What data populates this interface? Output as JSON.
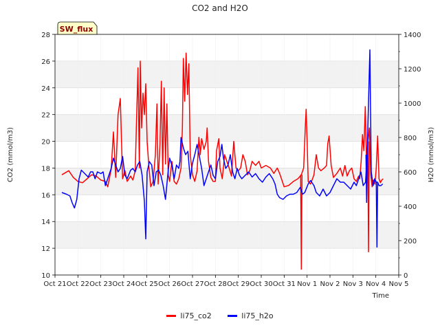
{
  "chart_data": {
    "type": "line",
    "title": "CO2 and H2O",
    "annotation": "SW_flux",
    "xlabel": "Time",
    "ylabel": "CO2 (mmol/m3)",
    "y2label": "H2O (mmol/m3)",
    "xlim": [
      0,
      15
    ],
    "ylim": [
      10,
      28
    ],
    "y2lim": [
      0,
      1400
    ],
    "xticks": [
      0,
      1,
      2,
      3,
      4,
      5,
      6,
      7,
      8,
      9,
      10,
      11,
      12,
      13,
      14,
      15
    ],
    "xtick_labels": [
      "Oct 21",
      "Oct 22",
      "Oct 23",
      "Oct 24",
      "Oct 25",
      "Oct 26",
      "Oct 27",
      "Oct 28",
      "Oct 29",
      "Oct 30",
      "Oct 31",
      "Nov 1",
      "Nov 2",
      "Nov 3",
      "Nov 4",
      "Nov 5"
    ],
    "yticks": [
      10,
      12,
      14,
      16,
      18,
      20,
      22,
      24,
      26,
      28
    ],
    "y2ticks": [
      0,
      200,
      400,
      600,
      800,
      1000,
      1200,
      1400
    ],
    "series": [
      {
        "name": "li75_co2",
        "color": "#ff0000",
        "axis": "left",
        "points": [
          [
            0.3,
            17.5
          ],
          [
            0.6,
            17.8
          ],
          [
            0.8,
            17.3
          ],
          [
            1.0,
            17.0
          ],
          [
            1.2,
            16.9
          ],
          [
            1.4,
            17.2
          ],
          [
            1.6,
            17.5
          ],
          [
            1.8,
            17.4
          ],
          [
            2.0,
            17.1
          ],
          [
            2.2,
            17.0
          ],
          [
            2.3,
            16.6
          ],
          [
            2.45,
            17.9
          ],
          [
            2.55,
            20.7
          ],
          [
            2.65,
            17.3
          ],
          [
            2.75,
            22.0
          ],
          [
            2.85,
            23.2
          ],
          [
            2.95,
            17.2
          ],
          [
            3.05,
            17.8
          ],
          [
            3.15,
            17.0
          ],
          [
            3.3,
            17.4
          ],
          [
            3.4,
            17.1
          ],
          [
            3.5,
            17.8
          ],
          [
            3.55,
            21.0
          ],
          [
            3.62,
            25.5
          ],
          [
            3.68,
            18.0
          ],
          [
            3.72,
            26.0
          ],
          [
            3.78,
            21.0
          ],
          [
            3.84,
            23.6
          ],
          [
            3.9,
            22.0
          ],
          [
            3.96,
            24.3
          ],
          [
            4.02,
            20.0
          ],
          [
            4.1,
            18.0
          ],
          [
            4.18,
            16.6
          ],
          [
            4.28,
            17.0
          ],
          [
            4.38,
            19.0
          ],
          [
            4.45,
            22.8
          ],
          [
            4.5,
            16.8
          ],
          [
            4.58,
            19.8
          ],
          [
            4.64,
            24.5
          ],
          [
            4.7,
            17.5
          ],
          [
            4.76,
            24.0
          ],
          [
            4.82,
            18.3
          ],
          [
            4.88,
            22.8
          ],
          [
            4.94,
            17.5
          ],
          [
            5.0,
            17.0
          ],
          [
            5.1,
            18.5
          ],
          [
            5.2,
            17.0
          ],
          [
            5.3,
            16.8
          ],
          [
            5.4,
            17.2
          ],
          [
            5.5,
            18.0
          ],
          [
            5.56,
            21.0
          ],
          [
            5.6,
            26.2
          ],
          [
            5.66,
            23.0
          ],
          [
            5.72,
            26.6
          ],
          [
            5.78,
            23.5
          ],
          [
            5.84,
            25.8
          ],
          [
            5.9,
            19.0
          ],
          [
            6.0,
            17.5
          ],
          [
            6.1,
            17.0
          ],
          [
            6.2,
            17.8
          ],
          [
            6.28,
            20.3
          ],
          [
            6.34,
            19.0
          ],
          [
            6.4,
            20.2
          ],
          [
            6.5,
            19.4
          ],
          [
            6.6,
            20.0
          ],
          [
            6.64,
            21.0
          ],
          [
            6.7,
            18.5
          ],
          [
            6.8,
            17.3
          ],
          [
            6.9,
            17.0
          ],
          [
            7.0,
            17.0
          ],
          [
            7.05,
            19.3
          ],
          [
            7.15,
            20.2
          ],
          [
            7.2,
            18.0
          ],
          [
            7.3,
            17.2
          ],
          [
            7.4,
            19.0
          ],
          [
            7.5,
            18.5
          ],
          [
            7.6,
            18.0
          ],
          [
            7.7,
            17.4
          ],
          [
            7.8,
            20.0
          ],
          [
            7.9,
            18.0
          ],
          [
            8.0,
            17.8
          ],
          [
            8.1,
            18.0
          ],
          [
            8.2,
            19.0
          ],
          [
            8.3,
            18.5
          ],
          [
            8.4,
            17.5
          ],
          [
            8.5,
            17.8
          ],
          [
            8.6,
            18.5
          ],
          [
            8.75,
            18.2
          ],
          [
            8.9,
            18.5
          ],
          [
            9.0,
            18.0
          ],
          [
            9.2,
            18.2
          ],
          [
            9.4,
            18.0
          ],
          [
            9.55,
            17.6
          ],
          [
            9.7,
            18.0
          ],
          [
            9.8,
            17.6
          ],
          [
            9.9,
            17.1
          ],
          [
            10.0,
            16.6
          ],
          [
            10.2,
            16.7
          ],
          [
            10.4,
            17.0
          ],
          [
            10.6,
            17.2
          ],
          [
            10.75,
            17.5
          ],
          [
            10.85,
            18.0
          ],
          [
            10.92,
            21.0
          ],
          [
            10.96,
            22.4
          ],
          [
            11.0,
            20.0
          ],
          [
            11.05,
            17.0
          ],
          [
            11.15,
            16.8
          ],
          [
            11.3,
            17.5
          ],
          [
            11.4,
            19.0
          ],
          [
            11.5,
            18.0
          ],
          [
            11.6,
            17.8
          ],
          [
            11.75,
            18.0
          ],
          [
            11.85,
            18.2
          ],
          [
            11.9,
            19.8
          ],
          [
            11.96,
            20.4
          ],
          [
            12.05,
            18.2
          ],
          [
            12.15,
            17.3
          ],
          [
            12.3,
            17.6
          ],
          [
            12.45,
            18.0
          ],
          [
            12.55,
            17.4
          ],
          [
            12.65,
            18.2
          ],
          [
            12.75,
            17.4
          ],
          [
            12.85,
            17.8
          ],
          [
            12.95,
            18.0
          ],
          [
            13.05,
            17.2
          ],
          [
            13.15,
            17.0
          ],
          [
            13.25,
            17.4
          ],
          [
            13.3,
            17.2
          ],
          [
            13.36,
            18.5
          ],
          [
            13.42,
            20.5
          ],
          [
            13.48,
            19.3
          ],
          [
            13.54,
            22.6
          ],
          [
            13.6,
            18.0
          ],
          [
            13.66,
            20.0
          ],
          [
            13.72,
            21.0
          ],
          [
            13.78,
            17.5
          ],
          [
            13.84,
            16.6
          ],
          [
            13.9,
            17.1
          ],
          [
            13.96,
            16.8
          ],
          [
            14.02,
            18.0
          ],
          [
            14.08,
            20.4
          ],
          [
            14.14,
            17.2
          ],
          [
            14.2,
            16.9
          ],
          [
            14.26,
            17.1
          ],
          [
            14.32,
            17.2
          ]
        ],
        "spikes": [
          [
            10.75,
            10.4
          ],
          [
            13.68,
            11.7
          ]
        ]
      },
      {
        "name": "li75_h2o",
        "color": "#0000ff",
        "axis": "right",
        "points": [
          [
            0.3,
            480
          ],
          [
            0.5,
            470
          ],
          [
            0.65,
            460
          ],
          [
            0.75,
            420
          ],
          [
            0.85,
            390
          ],
          [
            0.95,
            440
          ],
          [
            1.05,
            560
          ],
          [
            1.15,
            610
          ],
          [
            1.3,
            590
          ],
          [
            1.45,
            570
          ],
          [
            1.55,
            600
          ],
          [
            1.65,
            600
          ],
          [
            1.75,
            560
          ],
          [
            1.85,
            600
          ],
          [
            2.0,
            590
          ],
          [
            2.1,
            600
          ],
          [
            2.2,
            520
          ],
          [
            2.3,
            560
          ],
          [
            2.45,
            620
          ],
          [
            2.55,
            680
          ],
          [
            2.65,
            640
          ],
          [
            2.75,
            600
          ],
          [
            2.85,
            620
          ],
          [
            2.95,
            690
          ],
          [
            3.05,
            580
          ],
          [
            3.15,
            560
          ],
          [
            3.3,
            610
          ],
          [
            3.4,
            620
          ],
          [
            3.5,
            600
          ],
          [
            3.6,
            640
          ],
          [
            3.7,
            660
          ],
          [
            3.8,
            580
          ],
          [
            3.9,
            430
          ],
          [
            3.96,
            210
          ],
          [
            4.02,
            600
          ],
          [
            4.12,
            660
          ],
          [
            4.22,
            640
          ],
          [
            4.32,
            520
          ],
          [
            4.42,
            600
          ],
          [
            4.52,
            610
          ],
          [
            4.62,
            580
          ],
          [
            4.72,
            520
          ],
          [
            4.82,
            440
          ],
          [
            4.92,
            580
          ],
          [
            5.0,
            680
          ],
          [
            5.1,
            640
          ],
          [
            5.2,
            560
          ],
          [
            5.3,
            640
          ],
          [
            5.4,
            620
          ],
          [
            5.45,
            660
          ],
          [
            5.5,
            800
          ],
          [
            5.6,
            740
          ],
          [
            5.7,
            700
          ],
          [
            5.8,
            720
          ],
          [
            5.85,
            640
          ],
          [
            5.9,
            560
          ],
          [
            6.0,
            650
          ],
          [
            6.1,
            700
          ],
          [
            6.2,
            760
          ],
          [
            6.3,
            690
          ],
          [
            6.4,
            620
          ],
          [
            6.5,
            520
          ],
          [
            6.6,
            560
          ],
          [
            6.7,
            600
          ],
          [
            6.8,
            640
          ],
          [
            6.9,
            580
          ],
          [
            7.0,
            560
          ],
          [
            7.1,
            660
          ],
          [
            7.2,
            690
          ],
          [
            7.28,
            760
          ],
          [
            7.35,
            680
          ],
          [
            7.45,
            620
          ],
          [
            7.55,
            640
          ],
          [
            7.65,
            700
          ],
          [
            7.75,
            600
          ],
          [
            7.85,
            560
          ],
          [
            7.95,
            620
          ],
          [
            8.05,
            580
          ],
          [
            8.15,
            560
          ],
          [
            8.3,
            580
          ],
          [
            8.45,
            600
          ],
          [
            8.6,
            570
          ],
          [
            8.75,
            590
          ],
          [
            8.9,
            560
          ],
          [
            9.05,
            540
          ],
          [
            9.2,
            570
          ],
          [
            9.35,
            590
          ],
          [
            9.5,
            560
          ],
          [
            9.6,
            530
          ],
          [
            9.7,
            470
          ],
          [
            9.8,
            450
          ],
          [
            9.95,
            440
          ],
          [
            10.1,
            460
          ],
          [
            10.25,
            470
          ],
          [
            10.4,
            470
          ],
          [
            10.55,
            480
          ],
          [
            10.7,
            510
          ],
          [
            10.8,
            470
          ],
          [
            10.9,
            480
          ],
          [
            11.05,
            530
          ],
          [
            11.15,
            550
          ],
          [
            11.3,
            520
          ],
          [
            11.4,
            480
          ],
          [
            11.55,
            460
          ],
          [
            11.7,
            500
          ],
          [
            11.85,
            460
          ],
          [
            12.0,
            480
          ],
          [
            12.15,
            520
          ],
          [
            12.3,
            560
          ],
          [
            12.45,
            540
          ],
          [
            12.6,
            540
          ],
          [
            12.75,
            520
          ],
          [
            12.9,
            500
          ],
          [
            13.05,
            540
          ],
          [
            13.15,
            520
          ],
          [
            13.25,
            560
          ],
          [
            13.35,
            600
          ],
          [
            13.45,
            520
          ],
          [
            13.55,
            540
          ],
          [
            13.62,
            700
          ],
          [
            13.68,
            1000
          ],
          [
            13.74,
            1310
          ],
          [
            13.8,
            600
          ],
          [
            13.88,
            520
          ],
          [
            13.95,
            560
          ],
          [
            14.02,
            540
          ],
          [
            14.08,
            540
          ],
          [
            14.14,
            520
          ],
          [
            14.22,
            520
          ],
          [
            14.3,
            530
          ]
        ],
        "spikes": [
          [
            13.6,
            420
          ],
          [
            14.05,
            160
          ]
        ]
      }
    ],
    "legend": {
      "position": "bottom-center",
      "entries": [
        "li75_co2",
        "li75_h2o"
      ]
    },
    "background_bands": true
  }
}
